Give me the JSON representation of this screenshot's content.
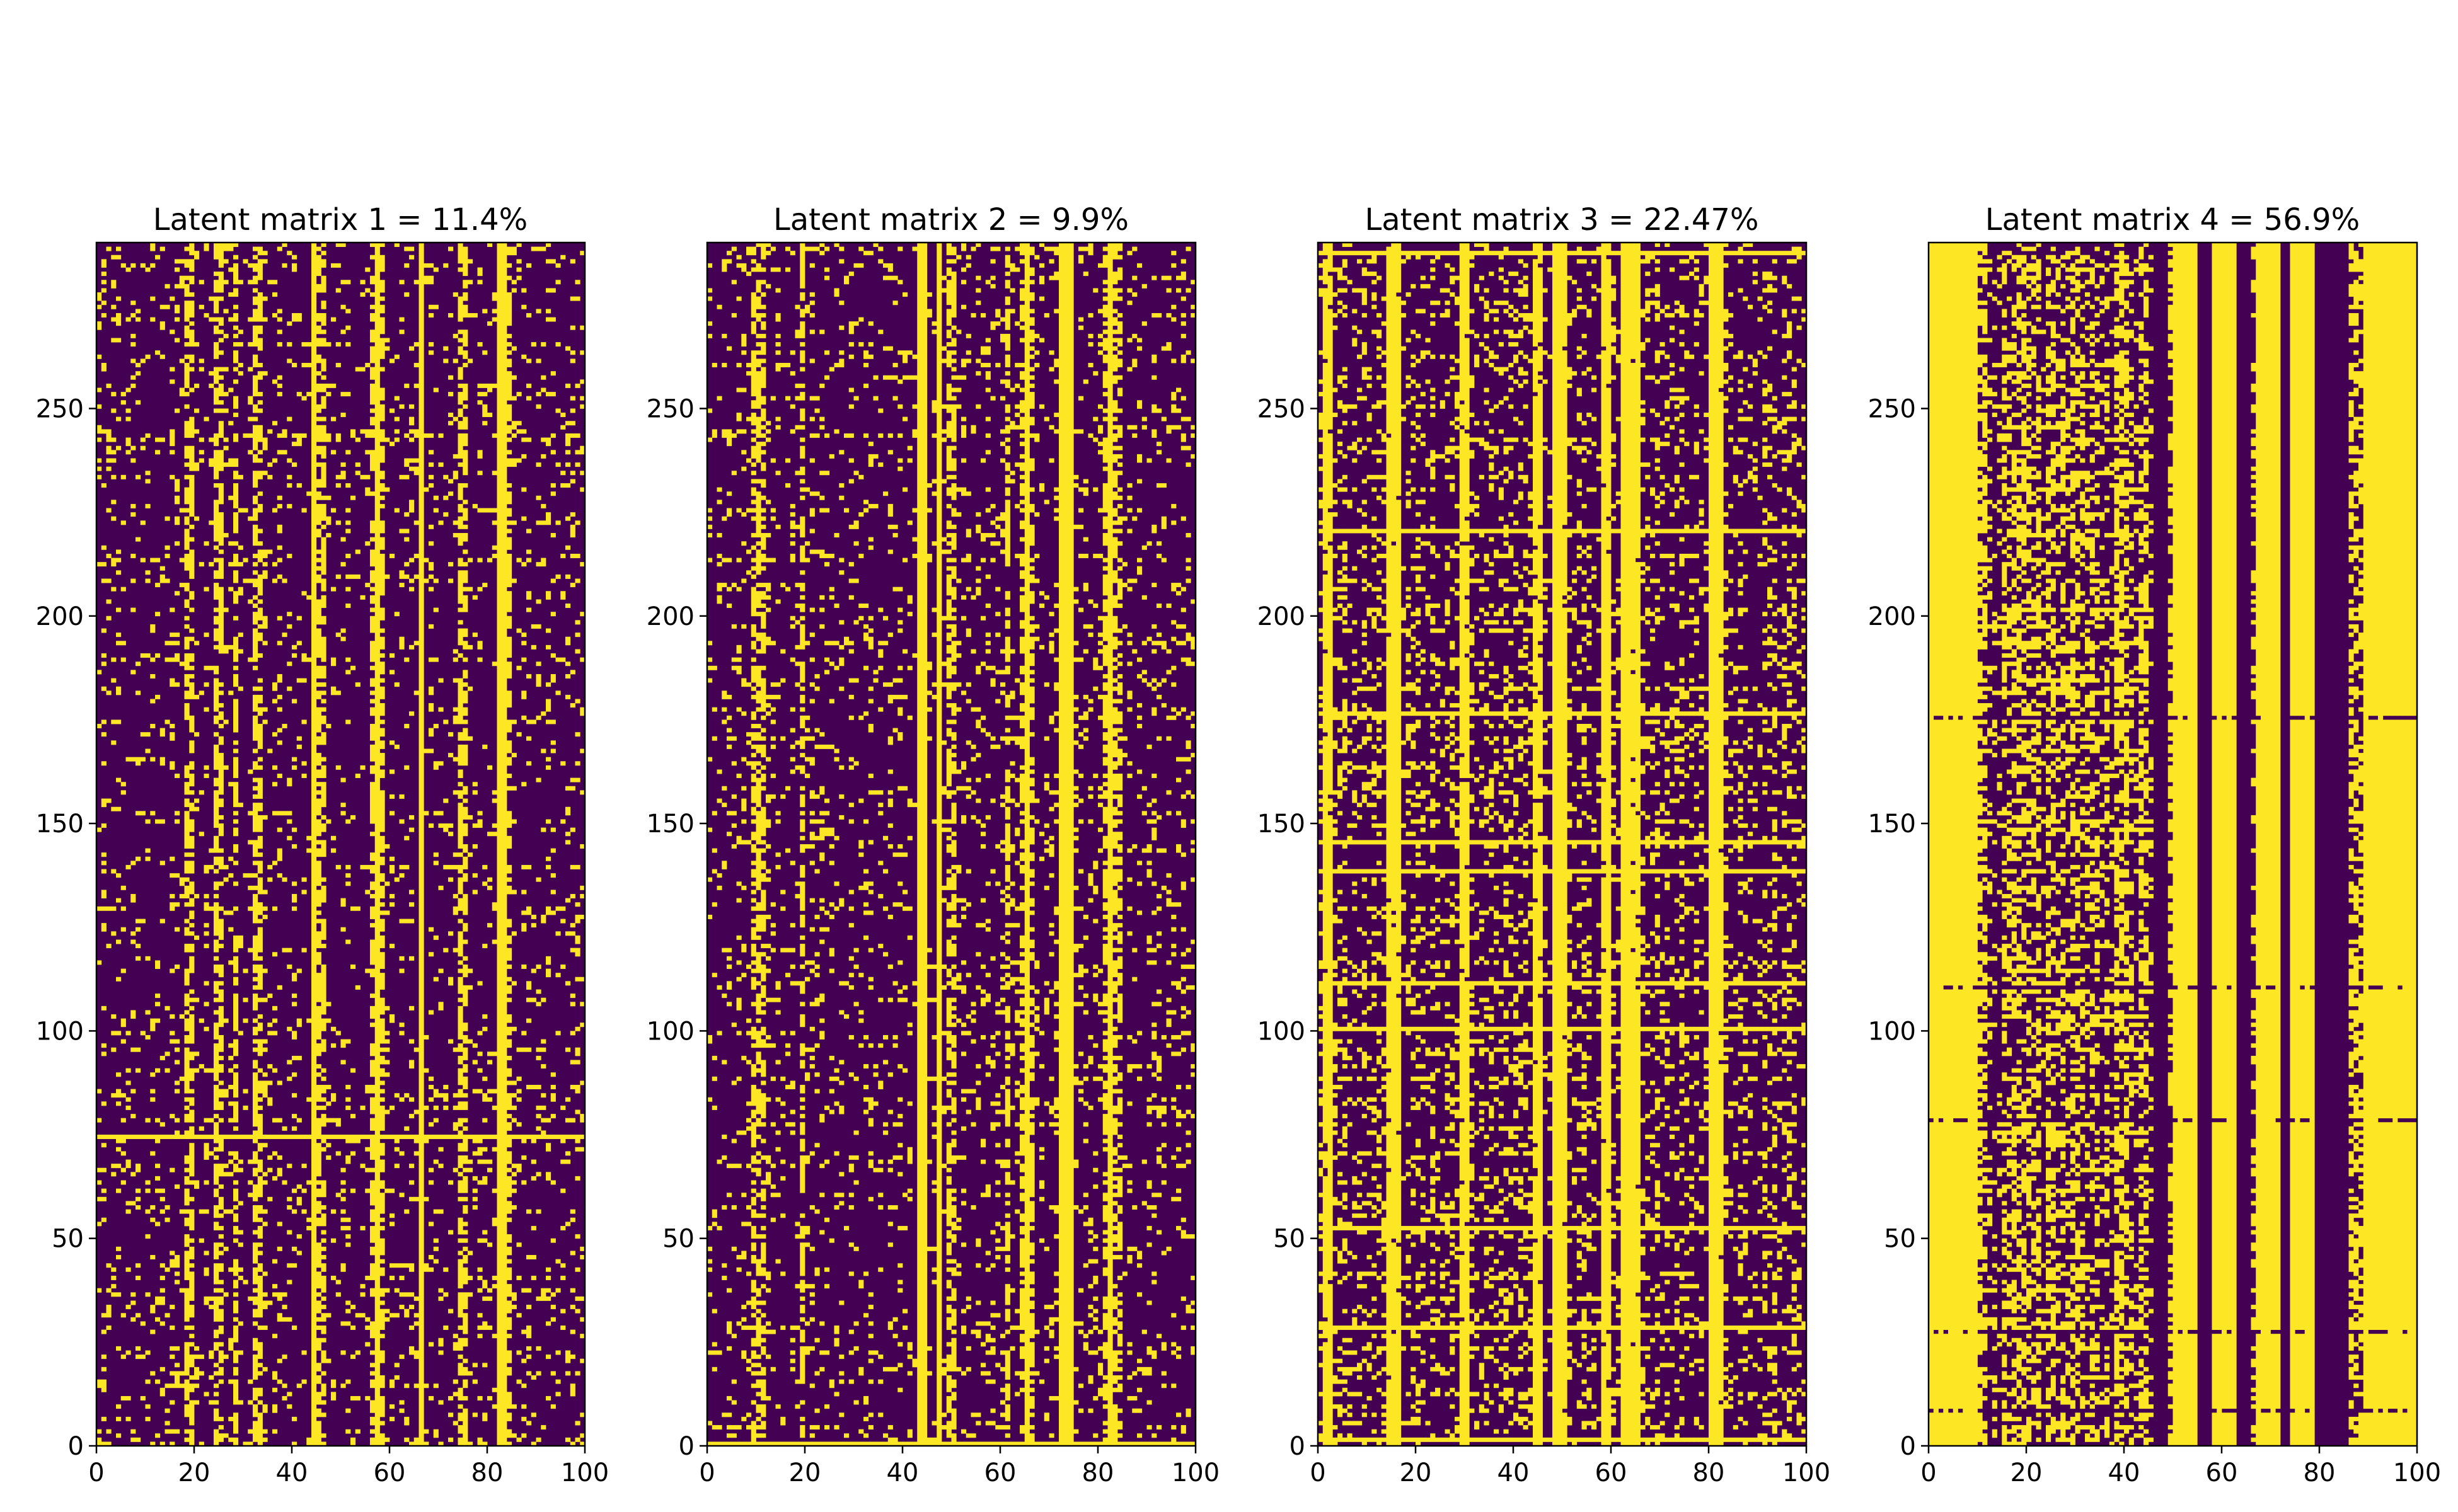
{
  "colors": {
    "off": "#440154",
    "on": "#fde725",
    "axis": "#000000",
    "background": "#ffffff"
  },
  "chart_data": [
    {
      "type": "heatmap",
      "title": "Latent matrix 1 = 11.4%",
      "density_percent": 11.4,
      "xlabel": "",
      "ylabel": "",
      "xlim": [
        0,
        100
      ],
      "ylim": [
        0,
        290
      ],
      "x_ticks": [
        0,
        20,
        40,
        60,
        80,
        100
      ],
      "y_ticks": [
        0,
        50,
        100,
        150,
        200,
        250
      ],
      "full_columns": [
        44,
        57,
        66,
        82,
        83
      ],
      "dense_columns": [
        18,
        19,
        24,
        25,
        28,
        32,
        33,
        45,
        46,
        56,
        58,
        74,
        75,
        84
      ],
      "full_rows": [
        74
      ],
      "dense_rows": [
        0,
        1,
        233
      ],
      "colormap": "viridis-binary"
    },
    {
      "type": "heatmap",
      "title": "Latent matrix 2 = 9.9%",
      "density_percent": 9.9,
      "xlabel": "",
      "ylabel": "",
      "xlim": [
        0,
        100
      ],
      "ylim": [
        0,
        290
      ],
      "x_ticks": [
        0,
        20,
        40,
        60,
        80,
        100
      ],
      "y_ticks": [
        0,
        50,
        100,
        150,
        200,
        250
      ],
      "full_columns": [
        43,
        44,
        47,
        65,
        72,
        73,
        74,
        82
      ],
      "dense_columns": [
        9,
        10,
        11,
        19,
        49,
        50,
        61,
        64,
        66,
        81,
        83,
        84
      ],
      "full_rows": [
        0
      ],
      "dense_rows": [
        22,
        193,
        225,
        288
      ],
      "colormap": "viridis-binary"
    },
    {
      "type": "heatmap",
      "title": "Latent matrix 3 = 22.47%",
      "density_percent": 22.47,
      "xlabel": "",
      "ylabel": "",
      "xlim": [
        0,
        100
      ],
      "ylim": [
        0,
        290
      ],
      "x_ticks": [
        0,
        20,
        40,
        60,
        80,
        100
      ],
      "y_ticks": [
        0,
        50,
        100,
        150,
        200,
        250
      ],
      "full_columns": [
        48,
        49,
        62,
        63,
        80,
        81
      ],
      "dense_columns": [
        1,
        2,
        14,
        15,
        16,
        29,
        30,
        44,
        45,
        50,
        58,
        59,
        64,
        65,
        82
      ],
      "full_rows": [
        287,
        220,
        176,
        145,
        138,
        111,
        100,
        52,
        28,
        1
      ],
      "dense_rows": [
        5,
        12,
        18,
        23,
        35,
        41,
        47,
        58,
        64,
        70,
        76,
        82,
        88,
        94,
        106,
        116,
        121,
        150,
        157,
        163,
        169,
        182,
        188,
        196,
        201,
        208,
        214,
        233,
        262
      ],
      "colormap": "viridis-binary"
    },
    {
      "type": "heatmap",
      "title": "Latent matrix 4 = 56.9%",
      "density_percent": 56.9,
      "xlabel": "",
      "ylabel": "",
      "xlim": [
        0,
        100
      ],
      "ylim": [
        0,
        290
      ],
      "x_ticks": [
        0,
        20,
        40,
        60,
        80,
        100
      ],
      "y_ticks": [
        0,
        50,
        100,
        150,
        200,
        250
      ],
      "full_columns": [
        0,
        1,
        2,
        3,
        4,
        5,
        6,
        7,
        8,
        9,
        50,
        51,
        52,
        53,
        54,
        58,
        59,
        60,
        61,
        62,
        67,
        68,
        69,
        70,
        71,
        74,
        75,
        76,
        77,
        78,
        89,
        90,
        91,
        92,
        93,
        94,
        95,
        96,
        97,
        98,
        99
      ],
      "empty_columns": [
        46,
        47,
        48,
        55,
        56,
        57,
        63,
        64,
        65,
        72,
        73,
        79,
        80,
        81,
        82,
        83,
        84,
        85
      ],
      "empty_rows": [
        175,
        110,
        78,
        27,
        8
      ],
      "colormap": "viridis-binary"
    }
  ]
}
